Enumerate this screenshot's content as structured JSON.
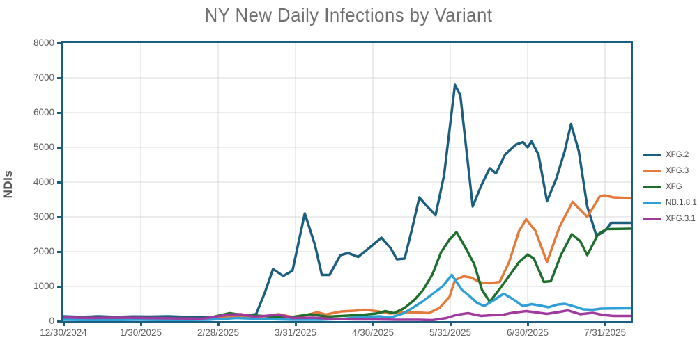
{
  "style": {
    "axis_color": "#1b5e7e",
    "grid_color": "#d9d9d9",
    "title_color": "#6f6f6f",
    "tick_label_color": "#5f5f5f",
    "legend_text_color": "#4a4a4a",
    "ylabel_color": "#555555",
    "background": "#ffffff"
  },
  "chart_data": {
    "type": "line",
    "title": "NY New Daily Infections by Variant",
    "xlabel": "",
    "ylabel": "NDIs",
    "ylim": [
      0,
      8000
    ],
    "y_ticks": [
      0,
      1000,
      2000,
      3000,
      4000,
      5000,
      6000,
      7000,
      8000
    ],
    "x_tick_labels": [
      "12/30/2024",
      "1/30/2025",
      "2/28/2025",
      "3/31/2025",
      "4/30/2025",
      "5/31/2025",
      "6/30/2025",
      "7/31/2025"
    ],
    "x_ticks": [
      0,
      1,
      2,
      3,
      4,
      5,
      6,
      7
    ],
    "x_range": [
      0,
      7.33
    ],
    "x_unit": "months since 12/30/2024, ticks equally spaced",
    "grid": true,
    "legend_position": "right-outside",
    "series": [
      {
        "name": "XFG.2",
        "color": "#1b5e7e",
        "points": [
          [
            0,
            140
          ],
          [
            0.23,
            120
          ],
          [
            0.45,
            140
          ],
          [
            0.68,
            120
          ],
          [
            0.9,
            135
          ],
          [
            1.13,
            130
          ],
          [
            1.35,
            140
          ],
          [
            1.58,
            120
          ],
          [
            1.8,
            110
          ],
          [
            2.03,
            120
          ],
          [
            2.25,
            200
          ],
          [
            2.38,
            170
          ],
          [
            2.49,
            200
          ],
          [
            2.6,
            800
          ],
          [
            2.71,
            1500
          ],
          [
            2.84,
            1300
          ],
          [
            2.96,
            1450
          ],
          [
            3.12,
            3100
          ],
          [
            3.25,
            2200
          ],
          [
            3.34,
            1330
          ],
          [
            3.44,
            1330
          ],
          [
            3.58,
            1900
          ],
          [
            3.68,
            1960
          ],
          [
            3.81,
            1850
          ],
          [
            3.97,
            2140
          ],
          [
            4.11,
            2400
          ],
          [
            4.23,
            2100
          ],
          [
            4.31,
            1780
          ],
          [
            4.41,
            1800
          ],
          [
            4.5,
            2600
          ],
          [
            4.6,
            3560
          ],
          [
            4.69,
            3330
          ],
          [
            4.81,
            3050
          ],
          [
            4.92,
            4200
          ],
          [
            5.06,
            6800
          ],
          [
            5.13,
            6500
          ],
          [
            5.29,
            3300
          ],
          [
            5.4,
            3900
          ],
          [
            5.51,
            4400
          ],
          [
            5.59,
            4250
          ],
          [
            5.71,
            4800
          ],
          [
            5.85,
            5080
          ],
          [
            5.94,
            5150
          ],
          [
            6.0,
            5000
          ],
          [
            6.05,
            5170
          ],
          [
            6.14,
            4800
          ],
          [
            6.25,
            3450
          ],
          [
            6.37,
            4100
          ],
          [
            6.48,
            4900
          ],
          [
            6.56,
            5670
          ],
          [
            6.66,
            4900
          ],
          [
            6.77,
            3300
          ],
          [
            6.89,
            2450
          ],
          [
            7.0,
            2600
          ],
          [
            7.08,
            2830
          ],
          [
            7.33,
            2830
          ]
        ]
      },
      {
        "name": "XFG.3",
        "color": "#e5793a",
        "points": [
          [
            0,
            80
          ],
          [
            0.35,
            90
          ],
          [
            0.71,
            70
          ],
          [
            1.07,
            80
          ],
          [
            1.43,
            70
          ],
          [
            1.79,
            60
          ],
          [
            2.06,
            90
          ],
          [
            2.24,
            140
          ],
          [
            2.47,
            120
          ],
          [
            2.65,
            150
          ],
          [
            2.78,
            200
          ],
          [
            2.96,
            120
          ],
          [
            3.14,
            170
          ],
          [
            3.28,
            260
          ],
          [
            3.39,
            190
          ],
          [
            3.59,
            280
          ],
          [
            3.77,
            300
          ],
          [
            3.89,
            330
          ],
          [
            4.04,
            290
          ],
          [
            4.22,
            220
          ],
          [
            4.43,
            260
          ],
          [
            4.59,
            250
          ],
          [
            4.72,
            230
          ],
          [
            4.86,
            380
          ],
          [
            4.99,
            700
          ],
          [
            5.06,
            1180
          ],
          [
            5.17,
            1290
          ],
          [
            5.26,
            1260
          ],
          [
            5.4,
            1110
          ],
          [
            5.51,
            1090
          ],
          [
            5.64,
            1130
          ],
          [
            5.76,
            1700
          ],
          [
            5.89,
            2600
          ],
          [
            5.98,
            2930
          ],
          [
            6.1,
            2600
          ],
          [
            6.25,
            1700
          ],
          [
            6.41,
            2700
          ],
          [
            6.58,
            3430
          ],
          [
            6.77,
            3000
          ],
          [
            6.93,
            3580
          ],
          [
            6.99,
            3620
          ],
          [
            7.11,
            3560
          ],
          [
            7.33,
            3540
          ]
        ]
      },
      {
        "name": "XFG",
        "color": "#1f6e2c",
        "points": [
          [
            0,
            70
          ],
          [
            0.35,
            80
          ],
          [
            0.71,
            60
          ],
          [
            1.07,
            70
          ],
          [
            1.43,
            60
          ],
          [
            1.79,
            50
          ],
          [
            2.15,
            230
          ],
          [
            2.33,
            170
          ],
          [
            2.51,
            160
          ],
          [
            2.74,
            120
          ],
          [
            2.96,
            120
          ],
          [
            3.19,
            200
          ],
          [
            3.41,
            130
          ],
          [
            3.68,
            160
          ],
          [
            3.86,
            180
          ],
          [
            4.04,
            220
          ],
          [
            4.16,
            290
          ],
          [
            4.27,
            230
          ],
          [
            4.41,
            380
          ],
          [
            4.54,
            620
          ],
          [
            4.65,
            900
          ],
          [
            4.77,
            1350
          ],
          [
            4.88,
            1980
          ],
          [
            4.99,
            2350
          ],
          [
            5.08,
            2560
          ],
          [
            5.2,
            2100
          ],
          [
            5.31,
            1640
          ],
          [
            5.41,
            900
          ],
          [
            5.51,
            560
          ],
          [
            5.63,
            900
          ],
          [
            5.76,
            1300
          ],
          [
            5.89,
            1700
          ],
          [
            6.0,
            1920
          ],
          [
            6.08,
            1800
          ],
          [
            6.21,
            1130
          ],
          [
            6.3,
            1150
          ],
          [
            6.43,
            1900
          ],
          [
            6.57,
            2500
          ],
          [
            6.68,
            2300
          ],
          [
            6.77,
            1900
          ],
          [
            6.91,
            2500
          ],
          [
            7.02,
            2650
          ],
          [
            7.33,
            2660
          ]
        ]
      },
      {
        "name": "NB.1.8.1",
        "color": "#2f9fd8",
        "points": [
          [
            0,
            40
          ],
          [
            0.53,
            30
          ],
          [
            0.98,
            40
          ],
          [
            1.43,
            30
          ],
          [
            1.88,
            40
          ],
          [
            2.24,
            90
          ],
          [
            2.6,
            60
          ],
          [
            2.96,
            40
          ],
          [
            3.32,
            40
          ],
          [
            3.59,
            60
          ],
          [
            3.86,
            120
          ],
          [
            4.09,
            140
          ],
          [
            4.22,
            100
          ],
          [
            4.39,
            220
          ],
          [
            4.54,
            420
          ],
          [
            4.65,
            580
          ],
          [
            4.78,
            800
          ],
          [
            4.9,
            1000
          ],
          [
            5.02,
            1330
          ],
          [
            5.15,
            900
          ],
          [
            5.24,
            740
          ],
          [
            5.35,
            520
          ],
          [
            5.44,
            440
          ],
          [
            5.56,
            600
          ],
          [
            5.69,
            790
          ],
          [
            5.8,
            650
          ],
          [
            5.94,
            430
          ],
          [
            6.05,
            490
          ],
          [
            6.16,
            450
          ],
          [
            6.27,
            400
          ],
          [
            6.39,
            480
          ],
          [
            6.48,
            500
          ],
          [
            6.61,
            420
          ],
          [
            6.72,
            340
          ],
          [
            6.84,
            330
          ],
          [
            6.95,
            360
          ],
          [
            7.33,
            370
          ]
        ]
      },
      {
        "name": "XFG.3.1",
        "color": "#a03a9e",
        "points": [
          [
            0,
            110
          ],
          [
            0.35,
            90
          ],
          [
            0.71,
            100
          ],
          [
            1.07,
            90
          ],
          [
            1.43,
            80
          ],
          [
            1.79,
            70
          ],
          [
            2.15,
            190
          ],
          [
            2.29,
            200
          ],
          [
            2.47,
            130
          ],
          [
            2.65,
            160
          ],
          [
            2.78,
            190
          ],
          [
            2.96,
            90
          ],
          [
            3.23,
            100
          ],
          [
            3.5,
            60
          ],
          [
            3.77,
            50
          ],
          [
            4.04,
            50
          ],
          [
            4.31,
            40
          ],
          [
            4.59,
            40
          ],
          [
            4.77,
            30
          ],
          [
            4.95,
            90
          ],
          [
            5.08,
            180
          ],
          [
            5.23,
            230
          ],
          [
            5.4,
            150
          ],
          [
            5.53,
            170
          ],
          [
            5.67,
            180
          ],
          [
            5.8,
            240
          ],
          [
            5.98,
            290
          ],
          [
            6.12,
            250
          ],
          [
            6.25,
            210
          ],
          [
            6.39,
            260
          ],
          [
            6.52,
            310
          ],
          [
            6.68,
            200
          ],
          [
            6.84,
            240
          ],
          [
            6.97,
            180
          ],
          [
            7.11,
            150
          ],
          [
            7.33,
            150
          ]
        ]
      }
    ]
  }
}
